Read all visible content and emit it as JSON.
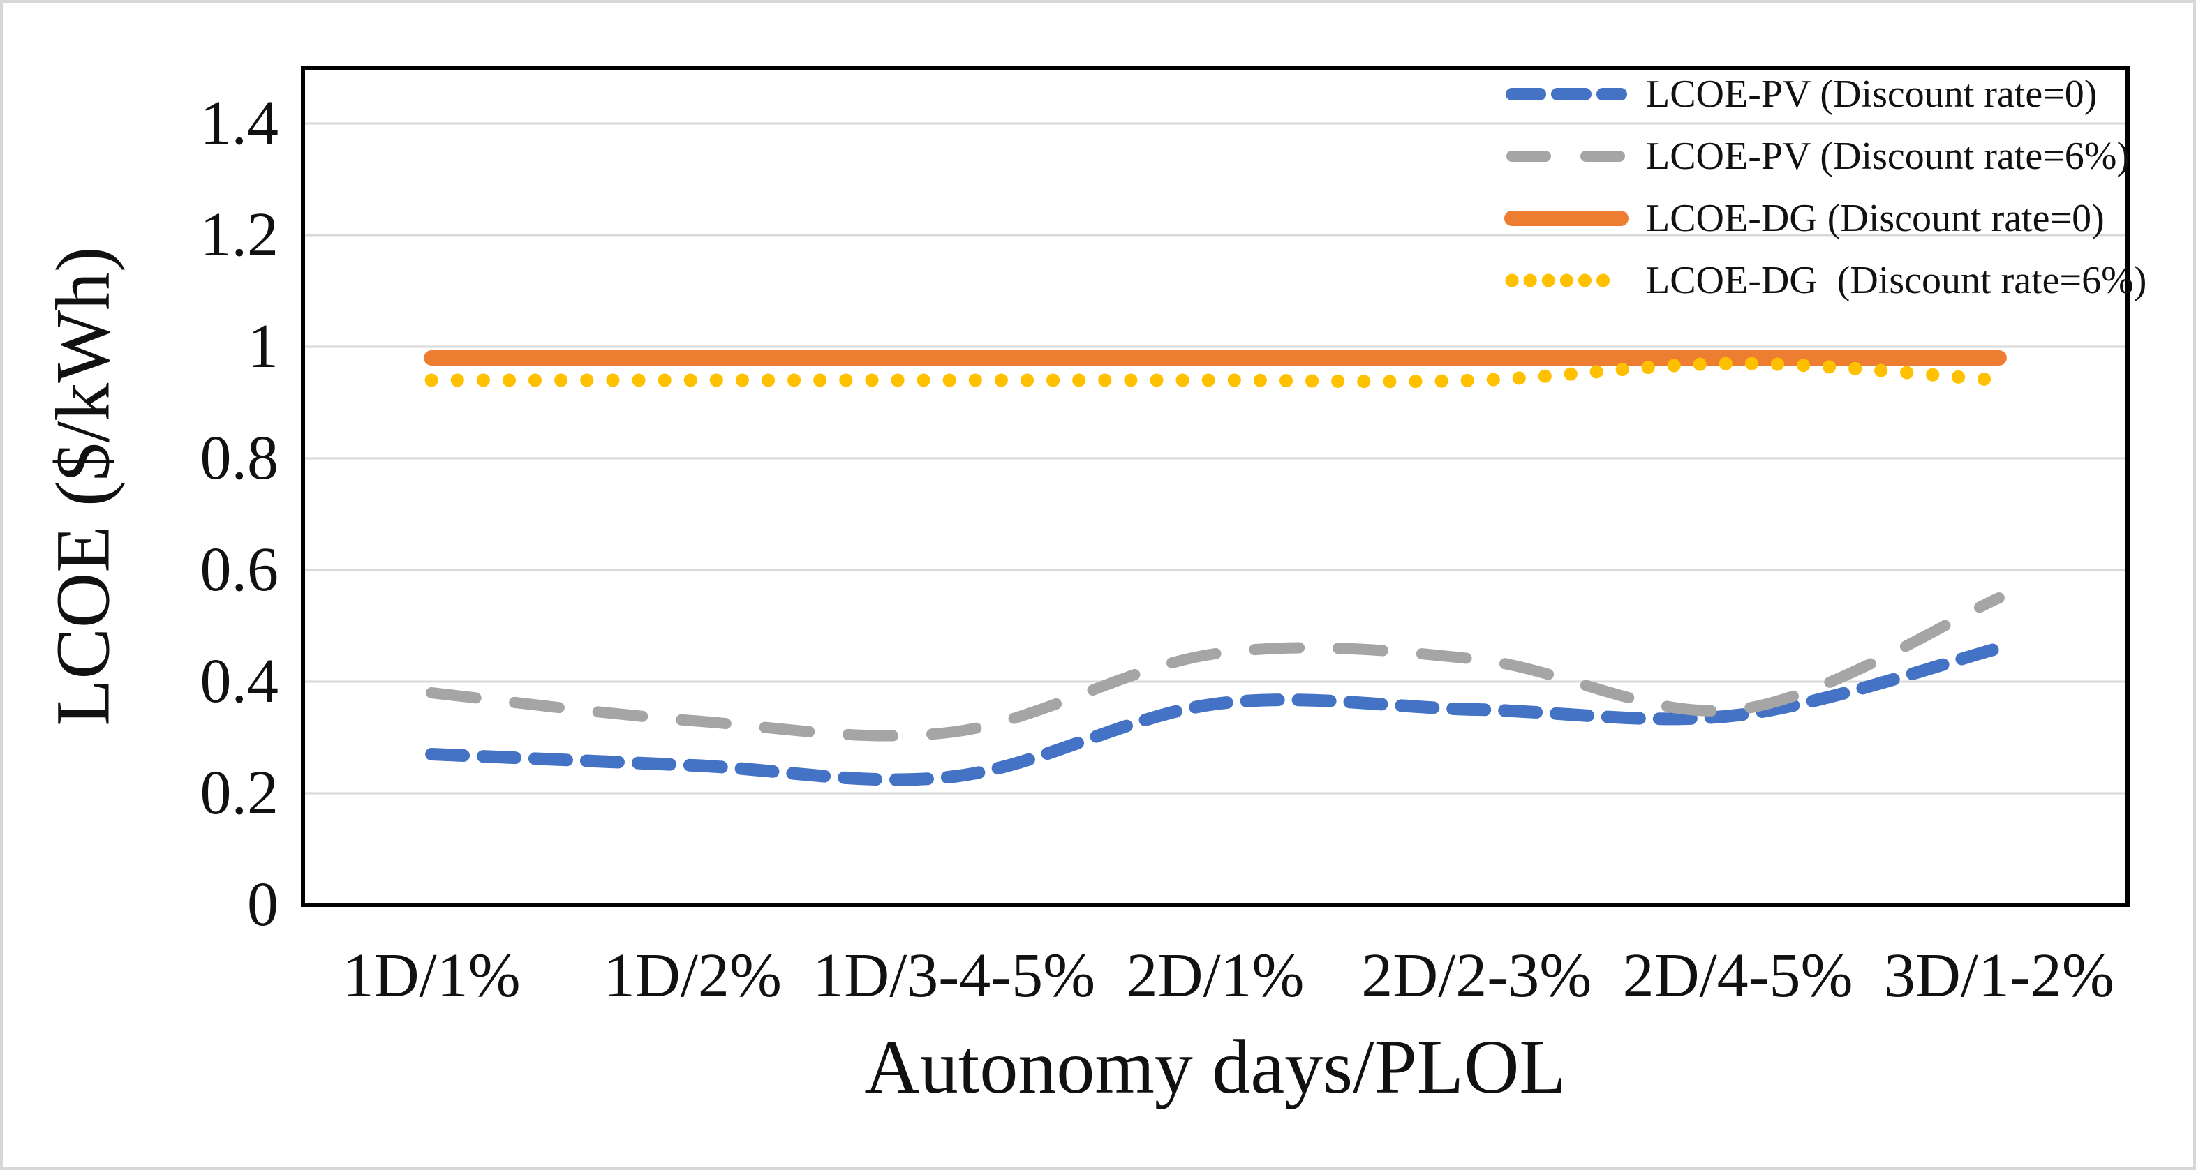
{
  "chart_data": {
    "type": "line",
    "title": "",
    "xlabel": "Autonomy days/PLOL",
    "ylabel": "LCOE ($/kWh)",
    "categories": [
      "1D/1%",
      "1D/2%",
      "1D/3-4-5%",
      "2D/1%",
      "2D/2-3%",
      "2D/4-5%",
      "3D/1-2%"
    ],
    "series": [
      {
        "name": "LCOE-PV (Discount rate=0)",
        "color": "#4472C4",
        "line_style": "dashed",
        "values": [
          0.27,
          0.25,
          0.23,
          0.36,
          0.35,
          0.34,
          0.46
        ]
      },
      {
        "name": "LCOE-PV (Discount rate=6%)",
        "color": "#A5A5A5",
        "line_style": "long-dashed",
        "values": [
          0.38,
          0.33,
          0.31,
          0.45,
          0.44,
          0.35,
          0.55
        ]
      },
      {
        "name": "LCOE-DG (Discount rate=0)",
        "color": "#ED7D31",
        "line_style": "solid",
        "values": [
          0.98,
          0.98,
          0.98,
          0.98,
          0.98,
          0.98,
          0.98
        ]
      },
      {
        "name": "LCOE-DG  (Discount rate=6%)",
        "color": "#FFC000",
        "line_style": "dotted",
        "values": [
          0.94,
          0.94,
          0.94,
          0.94,
          0.94,
          0.97,
          0.94
        ]
      }
    ],
    "ylim": [
      0,
      1.5
    ],
    "ytick_values": [
      0,
      0.2,
      0.4,
      0.6,
      0.8,
      1,
      1.2,
      1.4
    ],
    "ytick_labels": [
      "0",
      "0.2",
      "0.4",
      "0.6",
      "0.8",
      "1",
      "1.2",
      "1.4"
    ],
    "grid": true,
    "legend_position": "top-right-inside",
    "gridline_color": "#D9D9D9",
    "frame_color": "#000000"
  }
}
